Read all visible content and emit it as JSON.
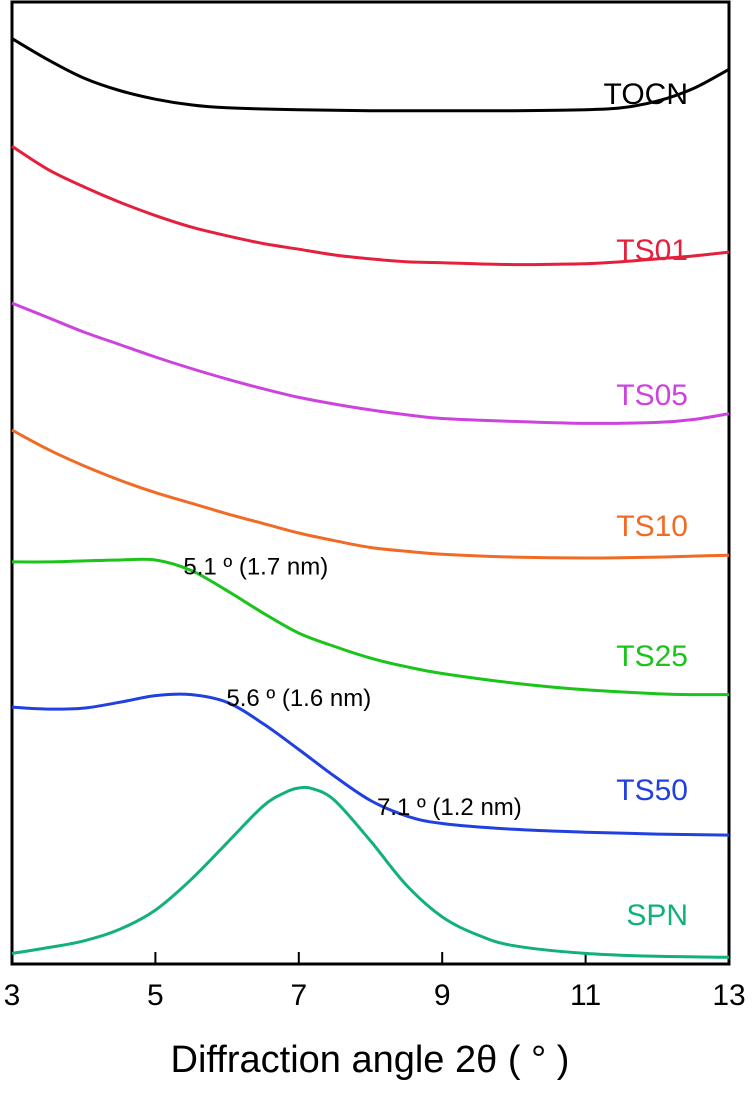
{
  "chart_data": {
    "type": "line",
    "xlabel": "Diffraction angle 2θ ( ° )",
    "ylabel": "",
    "xlim": [
      3,
      13
    ],
    "x_ticks": [
      3,
      5,
      7,
      9,
      11,
      13
    ],
    "y_ticks_shown": false,
    "note": "",
    "series": [
      {
        "name": "TOCN",
        "color": "#000000",
        "points": [
          [
            3.0,
            0.962
          ],
          [
            3.5,
            0.94
          ],
          [
            4.0,
            0.921
          ],
          [
            4.5,
            0.908
          ],
          [
            5.0,
            0.899
          ],
          [
            5.5,
            0.893
          ],
          [
            6.0,
            0.89
          ],
          [
            7.0,
            0.888
          ],
          [
            8.0,
            0.887
          ],
          [
            9.0,
            0.887
          ],
          [
            10.0,
            0.887
          ],
          [
            11.0,
            0.888
          ],
          [
            11.5,
            0.89
          ],
          [
            12.0,
            0.897
          ],
          [
            12.5,
            0.91
          ],
          [
            13.0,
            0.93
          ]
        ]
      },
      {
        "name": "TS01",
        "color": "#e4203c",
        "points": [
          [
            3.0,
            0.85
          ],
          [
            3.5,
            0.826
          ],
          [
            4.0,
            0.808
          ],
          [
            4.5,
            0.792
          ],
          [
            5.0,
            0.778
          ],
          [
            5.5,
            0.766
          ],
          [
            6.0,
            0.757
          ],
          [
            6.5,
            0.749
          ],
          [
            7.0,
            0.743
          ],
          [
            7.5,
            0.737
          ],
          [
            8.0,
            0.733
          ],
          [
            8.5,
            0.73
          ],
          [
            9.0,
            0.729
          ],
          [
            10.0,
            0.727
          ],
          [
            11.0,
            0.728
          ],
          [
            11.5,
            0.73
          ],
          [
            12.0,
            0.733
          ],
          [
            12.5,
            0.736
          ],
          [
            13.0,
            0.74
          ]
        ]
      },
      {
        "name": "TS05",
        "color": "#cc44dd",
        "points": [
          [
            3.0,
            0.687
          ],
          [
            3.5,
            0.672
          ],
          [
            4.0,
            0.657
          ],
          [
            4.5,
            0.644
          ],
          [
            5.0,
            0.631
          ],
          [
            5.5,
            0.619
          ],
          [
            6.0,
            0.608
          ],
          [
            6.5,
            0.598
          ],
          [
            7.0,
            0.589
          ],
          [
            7.5,
            0.582
          ],
          [
            8.0,
            0.576
          ],
          [
            8.5,
            0.571
          ],
          [
            9.0,
            0.567
          ],
          [
            10.0,
            0.564
          ],
          [
            11.0,
            0.562
          ],
          [
            12.0,
            0.563
          ],
          [
            12.5,
            0.566
          ],
          [
            13.0,
            0.572
          ]
        ]
      },
      {
        "name": "TS10",
        "color": "#f06b25",
        "points": [
          [
            3.0,
            0.555
          ],
          [
            3.5,
            0.535
          ],
          [
            4.0,
            0.518
          ],
          [
            4.5,
            0.503
          ],
          [
            5.0,
            0.49
          ],
          [
            5.5,
            0.479
          ],
          [
            6.0,
            0.468
          ],
          [
            6.5,
            0.458
          ],
          [
            7.0,
            0.448
          ],
          [
            7.5,
            0.44
          ],
          [
            8.0,
            0.433
          ],
          [
            8.5,
            0.429
          ],
          [
            9.0,
            0.426
          ],
          [
            10.0,
            0.423
          ],
          [
            11.0,
            0.422
          ],
          [
            12.0,
            0.423
          ],
          [
            12.5,
            0.424
          ],
          [
            13.0,
            0.425
          ]
        ]
      },
      {
        "name": "TS25",
        "color": "#1ac41a",
        "points": [
          [
            3.0,
            0.418
          ],
          [
            3.5,
            0.418
          ],
          [
            4.0,
            0.419
          ],
          [
            4.5,
            0.42
          ],
          [
            5.0,
            0.42
          ],
          [
            5.5,
            0.409
          ],
          [
            6.0,
            0.388
          ],
          [
            6.5,
            0.365
          ],
          [
            7.0,
            0.344
          ],
          [
            7.5,
            0.33
          ],
          [
            8.0,
            0.318
          ],
          [
            8.5,
            0.309
          ],
          [
            9.0,
            0.302
          ],
          [
            10.0,
            0.292
          ],
          [
            11.0,
            0.285
          ],
          [
            12.0,
            0.281
          ],
          [
            12.5,
            0.28
          ],
          [
            13.0,
            0.28
          ]
        ]
      },
      {
        "name": "TS50",
        "color": "#2040e0",
        "points": [
          [
            3.0,
            0.267
          ],
          [
            3.5,
            0.265
          ],
          [
            4.0,
            0.266
          ],
          [
            4.5,
            0.272
          ],
          [
            5.0,
            0.279
          ],
          [
            5.5,
            0.28
          ],
          [
            6.0,
            0.272
          ],
          [
            6.5,
            0.25
          ],
          [
            7.0,
            0.223
          ],
          [
            7.5,
            0.195
          ],
          [
            8.0,
            0.17
          ],
          [
            8.5,
            0.154
          ],
          [
            9.0,
            0.146
          ],
          [
            10.0,
            0.14
          ],
          [
            11.0,
            0.137
          ],
          [
            12.0,
            0.135
          ],
          [
            13.0,
            0.134
          ]
        ]
      },
      {
        "name": "SPN",
        "color": "#12b07c",
        "points": [
          [
            3.0,
            0.011
          ],
          [
            3.5,
            0.017
          ],
          [
            4.0,
            0.024
          ],
          [
            4.5,
            0.036
          ],
          [
            5.0,
            0.056
          ],
          [
            5.5,
            0.088
          ],
          [
            6.0,
            0.126
          ],
          [
            6.5,
            0.164
          ],
          [
            6.8,
            0.178
          ],
          [
            7.0,
            0.183
          ],
          [
            7.2,
            0.182
          ],
          [
            7.5,
            0.17
          ],
          [
            8.0,
            0.128
          ],
          [
            8.5,
            0.082
          ],
          [
            9.0,
            0.049
          ],
          [
            9.5,
            0.03
          ],
          [
            10.0,
            0.019
          ],
          [
            11.0,
            0.011
          ],
          [
            12.0,
            0.008
          ],
          [
            13.0,
            0.007
          ]
        ]
      }
    ],
    "annotations": [
      {
        "text": "5.1 º (1.7 nm)",
        "x": 6.4,
        "y": 0.405
      },
      {
        "text": "5.6 º (1.6 nm)",
        "x": 7.0,
        "y": 0.268
      },
      {
        "text": "7.1 º (1.2 nm)",
        "x": 9.1,
        "y": 0.155
      }
    ],
    "grid": false,
    "legend": "inline-right"
  }
}
